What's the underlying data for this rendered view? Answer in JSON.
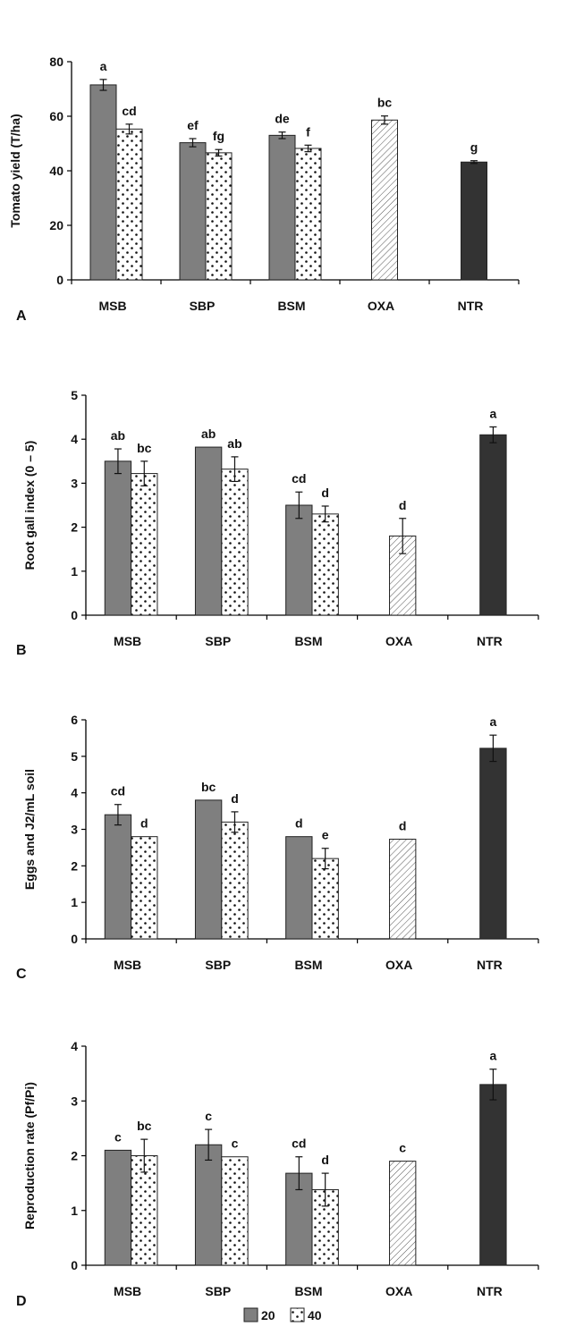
{
  "legend": [
    {
      "label": "20",
      "pattern": "solid-gray"
    },
    {
      "label": "40",
      "pattern": "dots"
    }
  ],
  "colors": {
    "bar20": "#7f7f7f",
    "ntr": "#333333",
    "oxa_hatch": "#555555",
    "axis": "#000000"
  },
  "chart_data": [
    {
      "type": "bar",
      "panel": "A",
      "ylabel": "Tomato yield (T/ha)",
      "ylim": [
        0,
        80
      ],
      "yticks": [
        0,
        20,
        40,
        60,
        80
      ],
      "categories": [
        "MSB",
        "SBP",
        "BSM",
        "OXA",
        "NTR"
      ],
      "bars": [
        {
          "cat": "MSB",
          "series": "20",
          "value": 71.5,
          "err": 2.0,
          "letter": "a"
        },
        {
          "cat": "MSB",
          "series": "40",
          "value": 55.3,
          "err": 1.8,
          "letter": "cd"
        },
        {
          "cat": "SBP",
          "series": "20",
          "value": 50.3,
          "err": 1.5,
          "letter": "ef"
        },
        {
          "cat": "SBP",
          "series": "40",
          "value": 46.6,
          "err": 1.2,
          "letter": "fg"
        },
        {
          "cat": "BSM",
          "series": "20",
          "value": 53.0,
          "err": 1.2,
          "letter": "de"
        },
        {
          "cat": "BSM",
          "series": "40",
          "value": 48.2,
          "err": 1.2,
          "letter": "f"
        },
        {
          "cat": "OXA",
          "series": "OXA",
          "value": 58.6,
          "err": 1.5,
          "letter": "bc"
        },
        {
          "cat": "NTR",
          "series": "NTR",
          "value": 43.2,
          "err": 0.5,
          "letter": "g"
        }
      ]
    },
    {
      "type": "bar",
      "panel": "B",
      "ylabel": "Root gall index (0 – 5)",
      "ylim": [
        0,
        5
      ],
      "yticks": [
        0,
        1,
        2,
        3,
        4,
        5
      ],
      "categories": [
        "MSB",
        "SBP",
        "BSM",
        "OXA",
        "NTR"
      ],
      "bars": [
        {
          "cat": "MSB",
          "series": "20",
          "value": 3.5,
          "err": 0.28,
          "letter": "ab"
        },
        {
          "cat": "MSB",
          "series": "40",
          "value": 3.22,
          "err": 0.28,
          "letter": "bc"
        },
        {
          "cat": "SBP",
          "series": "20",
          "value": 3.82,
          "err": 0,
          "letter": "ab"
        },
        {
          "cat": "SBP",
          "series": "40",
          "value": 3.32,
          "err": 0.28,
          "letter": "ab"
        },
        {
          "cat": "BSM",
          "series": "20",
          "value": 2.5,
          "err": 0.3,
          "letter": "cd"
        },
        {
          "cat": "BSM",
          "series": "40",
          "value": 2.3,
          "err": 0.18,
          "letter": "d"
        },
        {
          "cat": "OXA",
          "series": "OXA",
          "value": 1.8,
          "err": 0.4,
          "letter": "d"
        },
        {
          "cat": "NTR",
          "series": "NTR",
          "value": 4.1,
          "err": 0.18,
          "letter": "a"
        }
      ]
    },
    {
      "type": "bar",
      "panel": "C",
      "ylabel": "Eggs and J2/mL soil",
      "ylim": [
        0,
        6
      ],
      "yticks": [
        0,
        1,
        2,
        3,
        4,
        5,
        6
      ],
      "categories": [
        "MSB",
        "SBP",
        "BSM",
        "OXA",
        "NTR"
      ],
      "bars": [
        {
          "cat": "MSB",
          "series": "20",
          "value": 3.4,
          "err": 0.28,
          "letter": "cd"
        },
        {
          "cat": "MSB",
          "series": "40",
          "value": 2.8,
          "err": 0,
          "letter": "d"
        },
        {
          "cat": "SBP",
          "series": "20",
          "value": 3.8,
          "err": 0,
          "letter": "bc"
        },
        {
          "cat": "SBP",
          "series": "40",
          "value": 3.2,
          "err": 0.28,
          "letter": "d"
        },
        {
          "cat": "BSM",
          "series": "20",
          "value": 2.8,
          "err": 0,
          "letter": "d"
        },
        {
          "cat": "BSM",
          "series": "40",
          "value": 2.2,
          "err": 0.28,
          "letter": "e"
        },
        {
          "cat": "OXA",
          "series": "OXA",
          "value": 2.73,
          "err": 0,
          "letter": "d"
        },
        {
          "cat": "NTR",
          "series": "NTR",
          "value": 5.22,
          "err": 0.36,
          "letter": "a"
        }
      ]
    },
    {
      "type": "bar",
      "panel": "D",
      "ylabel": "Reproduction rate (Pf/Pi)",
      "ylim": [
        0,
        4
      ],
      "yticks": [
        0,
        1,
        2,
        3,
        4
      ],
      "categories": [
        "MSB",
        "SBP",
        "BSM",
        "OXA",
        "NTR"
      ],
      "bars": [
        {
          "cat": "MSB",
          "series": "20",
          "value": 2.1,
          "err": 0,
          "letter": "c"
        },
        {
          "cat": "MSB",
          "series": "40",
          "value": 2.0,
          "err": 0.3,
          "letter": "bc"
        },
        {
          "cat": "SBP",
          "series": "20",
          "value": 2.2,
          "err": 0.28,
          "letter": "c"
        },
        {
          "cat": "SBP",
          "series": "40",
          "value": 1.98,
          "err": 0,
          "letter": "c"
        },
        {
          "cat": "BSM",
          "series": "20",
          "value": 1.68,
          "err": 0.3,
          "letter": "cd"
        },
        {
          "cat": "BSM",
          "series": "40",
          "value": 1.38,
          "err": 0.3,
          "letter": "d"
        },
        {
          "cat": "OXA",
          "series": "OXA",
          "value": 1.9,
          "err": 0,
          "letter": "c"
        },
        {
          "cat": "NTR",
          "series": "NTR",
          "value": 3.3,
          "err": 0.28,
          "letter": "a"
        }
      ]
    }
  ]
}
